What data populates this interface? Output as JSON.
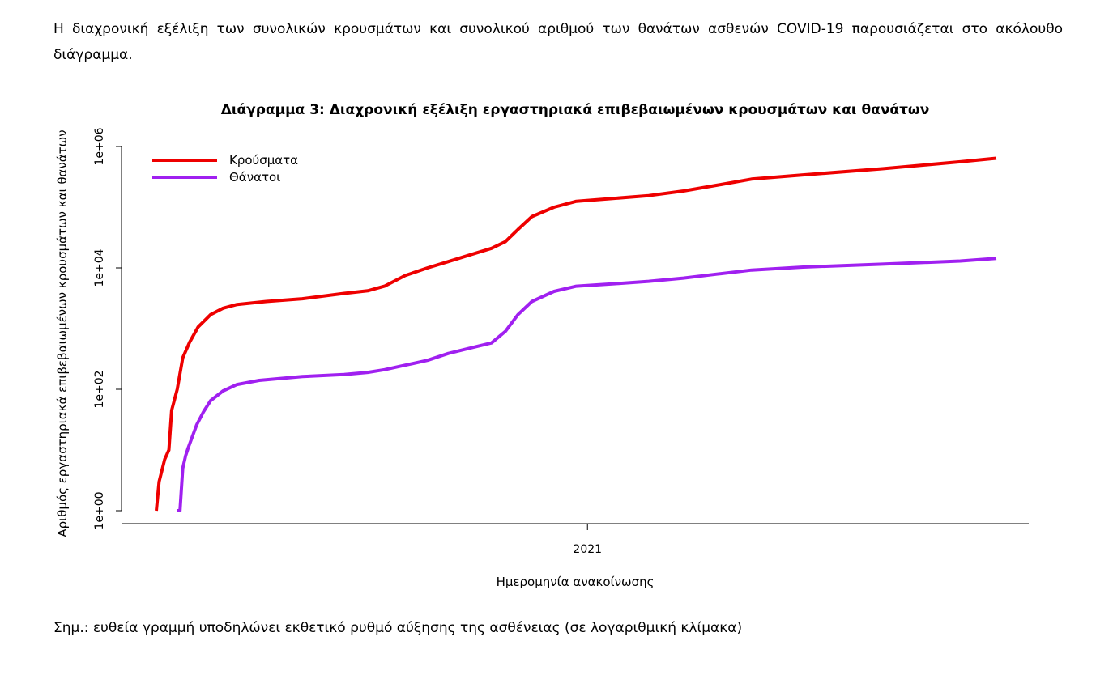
{
  "intro_text": "Η διαχρονική εξέλιξη των συνολικών κρουσμάτων και συνολικού αριθμού των θανάτων ασθενών COVID-19 παρουσιάζεται στο ακόλουθο διάγραμμα.",
  "note_text": "Σημ.: ευθεία γραμμή υποδηλώνει εκθετικό ρυθμό αύξησης της ασθένειας (σε λογαριθμική κλίμακα)",
  "chart_data": {
    "type": "line",
    "title": "Διάγραμμα 3: Διαχρονική εξέλιξη εργαστηριακά επιβεβαιωμένων κρουσμάτων και θανάτων",
    "xlabel": "Ημερομηνία ανακοίνωσης",
    "ylabel": "Αριθμός εργαστηριακά επιβεβαιωμένων κρουσμάτων και θανάτων",
    "y_scale": "log",
    "ylim": [
      1,
      1000000
    ],
    "yticks": [
      {
        "value": 1,
        "label": "1e+00"
      },
      {
        "value": 100,
        "label": "1e+02"
      },
      {
        "value": 10000,
        "label": "1e+04"
      },
      {
        "value": 1000000,
        "label": "1e+06"
      }
    ],
    "xlim": [
      "2020-02-26",
      "2021-10-22"
    ],
    "xticks": [
      {
        "value": "2021-01-01",
        "label": "2021"
      }
    ],
    "legend_position": "top-left",
    "grid": false,
    "series": [
      {
        "name": "Κρούσματα",
        "color": "#ee0000",
        "points": [
          [
            "2020-02-26",
            1
          ],
          [
            "2020-02-28",
            3
          ],
          [
            "2020-03-03",
            7
          ],
          [
            "2020-03-06",
            10
          ],
          [
            "2020-03-08",
            45
          ],
          [
            "2020-03-12",
            100
          ],
          [
            "2020-03-16",
            330
          ],
          [
            "2020-03-21",
            600
          ],
          [
            "2020-03-27",
            1060
          ],
          [
            "2020-04-05",
            1700
          ],
          [
            "2020-04-14",
            2170
          ],
          [
            "2020-04-24",
            2500
          ],
          [
            "2020-05-15",
            2800
          ],
          [
            "2020-06-10",
            3100
          ],
          [
            "2020-07-10",
            3800
          ],
          [
            "2020-07-27",
            4200
          ],
          [
            "2020-08-08",
            5000
          ],
          [
            "2020-08-23",
            7500
          ],
          [
            "2020-09-08",
            10000
          ],
          [
            "2020-09-23",
            12700
          ],
          [
            "2020-10-09",
            16500
          ],
          [
            "2020-10-24",
            21000
          ],
          [
            "2020-11-03",
            27000
          ],
          [
            "2020-11-12",
            43000
          ],
          [
            "2020-11-22",
            70000
          ],
          [
            "2020-12-08",
            100000
          ],
          [
            "2020-12-24",
            125000
          ],
          [
            "2021-01-21",
            140000
          ],
          [
            "2021-02-14",
            155000
          ],
          [
            "2021-03-11",
            185000
          ],
          [
            "2021-04-04",
            230000
          ],
          [
            "2021-04-29",
            290000
          ],
          [
            "2021-06-05",
            340000
          ],
          [
            "2021-08-01",
            430000
          ],
          [
            "2021-09-26",
            560000
          ],
          [
            "2021-10-22",
            640000
          ]
        ]
      },
      {
        "name": "Θάνατοι",
        "color": "#a020f0",
        "points": [
          [
            "2020-03-12",
            1
          ],
          [
            "2020-03-14",
            1
          ],
          [
            "2020-03-16",
            5
          ],
          [
            "2020-03-18",
            8
          ],
          [
            "2020-03-20",
            11
          ],
          [
            "2020-03-26",
            26
          ],
          [
            "2020-03-31",
            43
          ],
          [
            "2020-04-05",
            65
          ],
          [
            "2020-04-14",
            94
          ],
          [
            "2020-04-24",
            120
          ],
          [
            "2020-05-10",
            140
          ],
          [
            "2020-06-10",
            162
          ],
          [
            "2020-07-10",
            175
          ],
          [
            "2020-07-27",
            190
          ],
          [
            "2020-08-08",
            210
          ],
          [
            "2020-08-23",
            250
          ],
          [
            "2020-09-08",
            300
          ],
          [
            "2020-09-23",
            390
          ],
          [
            "2020-10-09",
            480
          ],
          [
            "2020-10-24",
            580
          ],
          [
            "2020-11-03",
            900
          ],
          [
            "2020-11-12",
            1700
          ],
          [
            "2020-11-22",
            2800
          ],
          [
            "2020-12-08",
            4100
          ],
          [
            "2020-12-24",
            5000
          ],
          [
            "2021-01-21",
            5500
          ],
          [
            "2021-02-14",
            6000
          ],
          [
            "2021-03-11",
            6800
          ],
          [
            "2021-04-04",
            7900
          ],
          [
            "2021-04-29",
            9200
          ],
          [
            "2021-06-05",
            10300
          ],
          [
            "2021-08-01",
            11500
          ],
          [
            "2021-09-26",
            13000
          ],
          [
            "2021-10-22",
            14300
          ]
        ]
      }
    ]
  }
}
